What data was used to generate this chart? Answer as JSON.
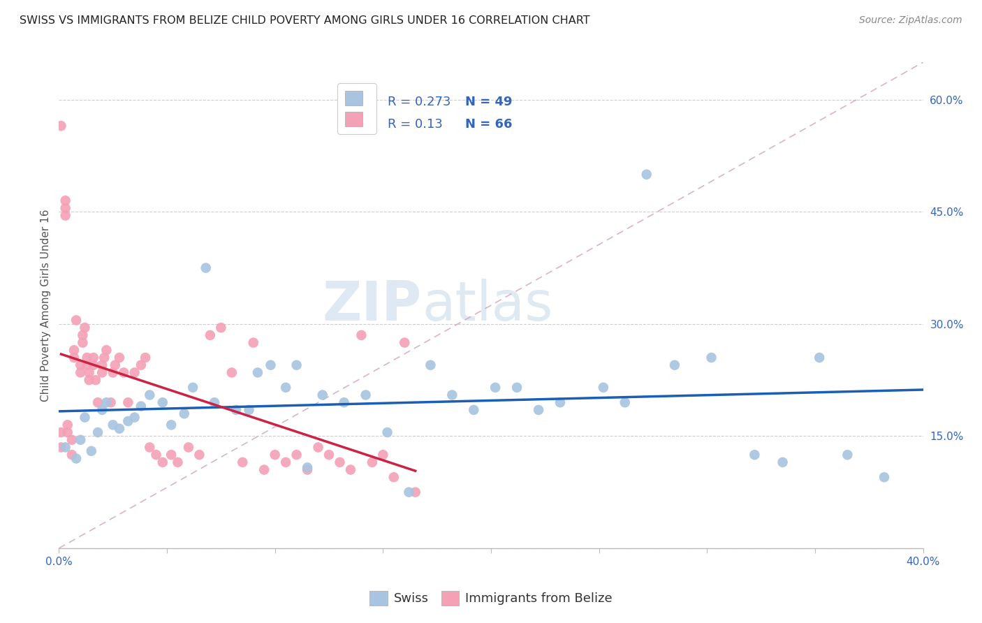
{
  "title": "SWISS VS IMMIGRANTS FROM BELIZE CHILD POVERTY AMONG GIRLS UNDER 16 CORRELATION CHART",
  "source": "Source: ZipAtlas.com",
  "ylabel": "Child Poverty Among Girls Under 16",
  "xlim": [
    0.0,
    0.4
  ],
  "ylim": [
    0.0,
    0.65
  ],
  "xticks": [
    0.0,
    0.05,
    0.1,
    0.15,
    0.2,
    0.25,
    0.3,
    0.35,
    0.4
  ],
  "xticklabels": [
    "0.0%",
    "",
    "",
    "",
    "",
    "",
    "",
    "",
    "40.0%"
  ],
  "yticks": [
    0.0,
    0.15,
    0.3,
    0.45,
    0.6
  ],
  "yticklabels": [
    "",
    "15.0%",
    "30.0%",
    "45.0%",
    "60.0%"
  ],
  "swiss_color": "#a8c4e0",
  "belize_color": "#f4a0b5",
  "swiss_line_color": "#1a5fb4",
  "belize_line_color": "#cc2244",
  "diagonal_color": "#d0a0c0",
  "swiss_R": 0.273,
  "swiss_N": 49,
  "belize_R": 0.13,
  "belize_N": 66,
  "watermark_zip": "ZIP",
  "watermark_atlas": "atlas",
  "swiss_x": [
    0.003,
    0.008,
    0.01,
    0.012,
    0.015,
    0.018,
    0.02,
    0.022,
    0.025,
    0.028,
    0.032,
    0.035,
    0.038,
    0.042,
    0.048,
    0.052,
    0.058,
    0.062,
    0.068,
    0.072,
    0.082,
    0.088,
    0.092,
    0.098,
    0.105,
    0.11,
    0.115,
    0.122,
    0.132,
    0.142,
    0.152,
    0.162,
    0.172,
    0.182,
    0.192,
    0.202,
    0.212,
    0.222,
    0.232,
    0.252,
    0.262,
    0.272,
    0.285,
    0.302,
    0.322,
    0.335,
    0.352,
    0.365,
    0.382
  ],
  "swiss_y": [
    0.135,
    0.12,
    0.145,
    0.175,
    0.13,
    0.155,
    0.185,
    0.195,
    0.165,
    0.16,
    0.17,
    0.175,
    0.19,
    0.205,
    0.195,
    0.165,
    0.18,
    0.215,
    0.375,
    0.195,
    0.185,
    0.185,
    0.235,
    0.245,
    0.215,
    0.245,
    0.108,
    0.205,
    0.195,
    0.205,
    0.155,
    0.075,
    0.245,
    0.205,
    0.185,
    0.215,
    0.215,
    0.185,
    0.195,
    0.215,
    0.195,
    0.5,
    0.245,
    0.255,
    0.125,
    0.115,
    0.255,
    0.125,
    0.095
  ],
  "belize_x": [
    0.001,
    0.001,
    0.001,
    0.003,
    0.003,
    0.003,
    0.004,
    0.004,
    0.006,
    0.006,
    0.007,
    0.007,
    0.008,
    0.01,
    0.01,
    0.011,
    0.011,
    0.012,
    0.013,
    0.013,
    0.014,
    0.014,
    0.016,
    0.016,
    0.017,
    0.018,
    0.02,
    0.02,
    0.021,
    0.022,
    0.024,
    0.025,
    0.026,
    0.028,
    0.03,
    0.032,
    0.035,
    0.038,
    0.04,
    0.042,
    0.045,
    0.048,
    0.052,
    0.055,
    0.06,
    0.065,
    0.07,
    0.075,
    0.08,
    0.085,
    0.09,
    0.095,
    0.1,
    0.105,
    0.11,
    0.115,
    0.12,
    0.125,
    0.13,
    0.135,
    0.14,
    0.145,
    0.15,
    0.155,
    0.16,
    0.165
  ],
  "belize_y": [
    0.135,
    0.155,
    0.565,
    0.445,
    0.455,
    0.465,
    0.155,
    0.165,
    0.125,
    0.145,
    0.255,
    0.265,
    0.305,
    0.235,
    0.245,
    0.275,
    0.285,
    0.295,
    0.245,
    0.255,
    0.225,
    0.235,
    0.245,
    0.255,
    0.225,
    0.195,
    0.235,
    0.245,
    0.255,
    0.265,
    0.195,
    0.235,
    0.245,
    0.255,
    0.235,
    0.195,
    0.235,
    0.245,
    0.255,
    0.135,
    0.125,
    0.115,
    0.125,
    0.115,
    0.135,
    0.125,
    0.285,
    0.295,
    0.235,
    0.115,
    0.275,
    0.105,
    0.125,
    0.115,
    0.125,
    0.105,
    0.135,
    0.125,
    0.115,
    0.105,
    0.285,
    0.115,
    0.125,
    0.095,
    0.275,
    0.075
  ]
}
